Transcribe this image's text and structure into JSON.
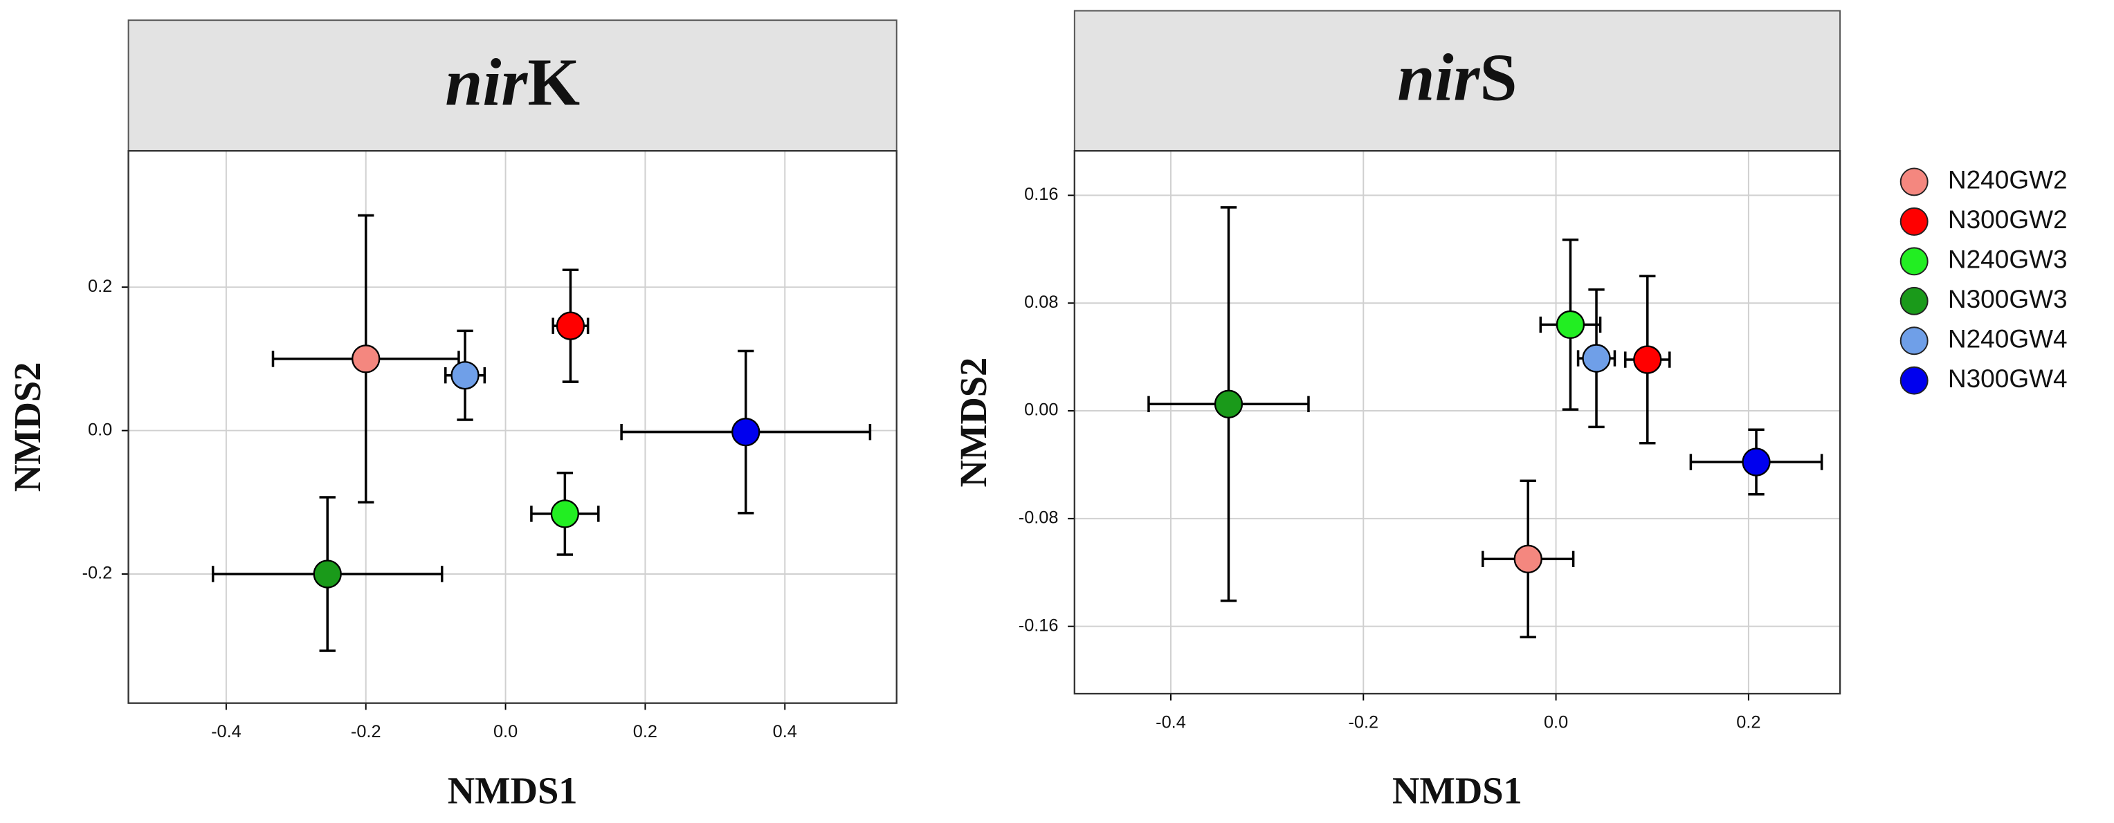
{
  "chart_data": [
    {
      "type": "scatter",
      "title": "nirK",
      "xlabel": "NMDS1",
      "ylabel": "NMDS2",
      "grid": true,
      "xlim": [
        -0.54,
        0.56
      ],
      "xticks": [
        -0.4,
        -0.2,
        {
          "value": 0,
          "label": "0.0"
        },
        0.2,
        0.4
      ],
      "ylim": [
        -0.38,
        0.39
      ],
      "yticks": [
        -0.2,
        {
          "value": 0,
          "label": "0.0"
        },
        0.2
      ],
      "series": [
        {
          "name": "N240GW2",
          "color": "#f4877f",
          "x": [
            -0.2
          ],
          "values": [
            0.1
          ],
          "xerr": [
            0.133
          ],
          "yerr": [
            0.2
          ]
        },
        {
          "name": "N300GW2",
          "color": "#ff0000",
          "x": [
            0.093
          ],
          "values": [
            0.146
          ],
          "xerr": [
            0.025
          ],
          "yerr": [
            0.078
          ]
        },
        {
          "name": "N240GW3",
          "color": "#22ee22",
          "x": [
            0.085
          ],
          "values": [
            -0.116
          ],
          "xerr": [
            0.048
          ],
          "yerr": [
            0.057
          ]
        },
        {
          "name": "N300GW3",
          "color": "#1a9a1a",
          "x": [
            -0.255
          ],
          "values": [
            -0.2
          ],
          "xerr": [
            0.164
          ],
          "yerr": [
            0.107
          ]
        },
        {
          "name": "N240GW4",
          "color": "#6f9fe8",
          "x": [
            -0.058
          ],
          "values": [
            0.077
          ],
          "xerr": [
            0.028
          ],
          "yerr": [
            0.062
          ]
        },
        {
          "name": "N300GW4",
          "color": "#0000ee",
          "x": [
            0.344
          ],
          "values": [
            -0.002
          ],
          "xerr": [
            0.178
          ],
          "yerr": [
            0.113
          ]
        }
      ]
    },
    {
      "type": "scatter",
      "title": "nirS",
      "xlabel": "NMDS1",
      "ylabel": "NMDS2",
      "grid": true,
      "legend": "right",
      "xlim": [
        -0.5,
        0.295
      ],
      "xticks": [
        -0.4,
        -0.2,
        {
          "value": 0,
          "label": "0.0"
        },
        0.2
      ],
      "ylim": [
        -0.21,
        0.193
      ],
      "yticks": [
        -0.16,
        -0.08,
        {
          "value": 0,
          "label": "0.00"
        },
        0.08,
        0.16
      ],
      "series": [
        {
          "name": "N240GW2",
          "color": "#f4877f",
          "x": [
            -0.029
          ],
          "values": [
            -0.11
          ],
          "xerr": [
            0.047
          ],
          "yerr": [
            0.058
          ]
        },
        {
          "name": "N300GW2",
          "color": "#ff0000",
          "x": [
            0.095
          ],
          "values": [
            0.038
          ],
          "xerr": [
            0.023
          ],
          "yerr": [
            0.062
          ]
        },
        {
          "name": "N240GW3",
          "color": "#22ee22",
          "x": [
            0.015
          ],
          "values": [
            0.064
          ],
          "xerr": [
            0.031
          ],
          "yerr": [
            0.063
          ]
        },
        {
          "name": "N300GW3",
          "color": "#1a9a1a",
          "x": [
            -0.34
          ],
          "values": [
            0.005
          ],
          "xerr": [
            0.083
          ],
          "yerr": [
            0.146
          ]
        },
        {
          "name": "N240GW4",
          "color": "#6f9fe8",
          "x": [
            0.042
          ],
          "values": [
            0.039
          ],
          "xerr": [
            0.019
          ],
          "yerr": [
            0.051
          ]
        },
        {
          "name": "N300GW4",
          "color": "#0000ee",
          "x": [
            0.208
          ],
          "values": [
            -0.038
          ],
          "xerr": [
            0.068
          ],
          "yerr": [
            0.024
          ]
        }
      ]
    }
  ]
}
